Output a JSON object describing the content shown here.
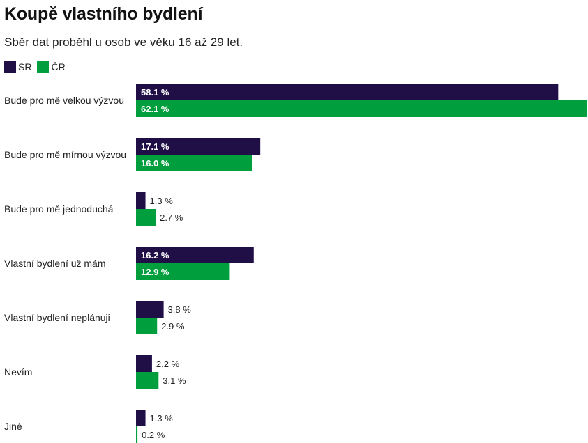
{
  "chart_data": {
    "type": "bar",
    "orientation": "horizontal",
    "title": "Koupě vlastního bydlení",
    "subtitle": "Sběr dat proběhl u osob ve věku 16 až 29 let.",
    "categories": [
      "Bude pro mě velkou výzvou",
      "Bude pro mě mírnou výzvou",
      "Bude pro mě jednoduchá",
      "Vlastní bydlení už mám",
      "Vlastní bydlení neplánuji",
      "Nevím",
      "Jiné"
    ],
    "series": [
      {
        "name": "SR",
        "color": "#1f0f46",
        "values": [
          58.1,
          17.1,
          1.3,
          16.2,
          3.8,
          2.2,
          1.3
        ],
        "labels": [
          "58.1 %",
          "17.1 %",
          "1.3 %",
          "16.2 %",
          "3.8 %",
          "2.2 %",
          "1.3 %"
        ]
      },
      {
        "name": "ČR",
        "color": "#009e3d",
        "values": [
          62.1,
          16.0,
          2.7,
          12.9,
          2.9,
          3.1,
          0.2
        ],
        "labels": [
          "62.1 %",
          "16.0 %",
          "2.7 %",
          "12.9 %",
          "2.9 %",
          "3.1 %",
          "0.2 %"
        ]
      }
    ],
    "xlim": [
      0,
      62.1
    ],
    "legend": "top-left",
    "grid": false
  }
}
